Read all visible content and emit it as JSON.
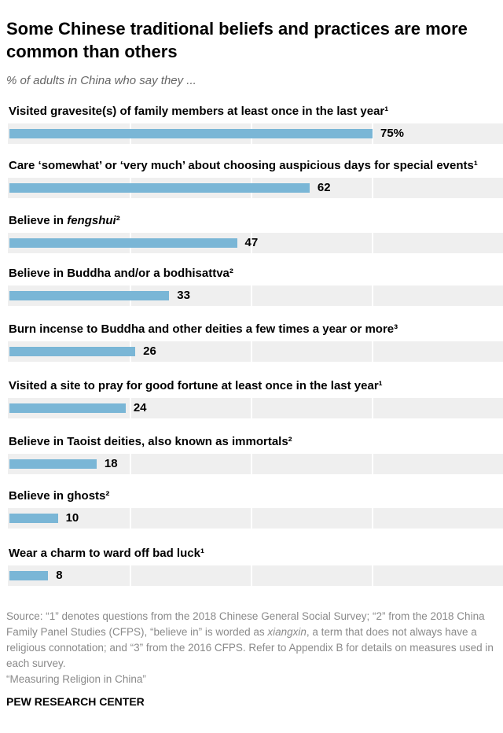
{
  "title": "Some Chinese traditional beliefs and practices are more common than others",
  "subtitle": "% of adults in China who say they ...",
  "chart_data": {
    "type": "bar",
    "orientation": "horizontal",
    "categories": [
      "Visited gravesite(s) of family members at least once in the last year¹",
      "Care ‘somewhat’ or ‘very much’ about choosing auspicious days for special events¹",
      "Believe in fengshui²",
      "Believe in Buddha and/or a bodhisattva²",
      "Burn incense to Buddha and other deities a few times a year or more³",
      "Visited a site to pray for good fortune at least once in the last year¹",
      "Believe in Taoist deities, also known as immortals²",
      "Believe in ghosts²",
      "Wear a charm to ward off bad luck¹"
    ],
    "values": [
      75,
      62,
      47,
      33,
      26,
      24,
      18,
      10,
      8
    ],
    "data_labels": [
      "75%",
      "62",
      "47",
      "33",
      "26",
      "24",
      "18",
      "10",
      "8"
    ],
    "xlim": [
      0,
      100
    ],
    "grid": true,
    "bar_color": "#7ab6d6",
    "band_color": "#efefef"
  },
  "source": {
    "pre": "Source: “1” denotes questions from the 2018 Chinese General Social Survey; “2” from the 2018 China Family Panel Studies (CFPS), “believe in” is worded as ",
    "italic": "xiangxin",
    "post": ", a term that does not always have a religious connotation; and “3” from the 2016 CFPS. Refer to Appendix B for details on measures used in each survey.",
    "report": "“Measuring Religion in China”"
  },
  "brand": "PEW RESEARCH CENTER"
}
